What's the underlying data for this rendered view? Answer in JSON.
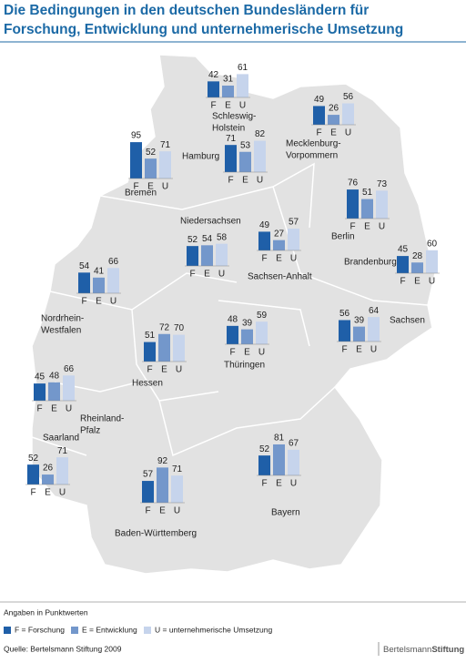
{
  "title_lines": [
    "Die Bedingungen in den deutschen Bundesländern für",
    "Forschung, Entwicklung und unternehmerische Umsetzung"
  ],
  "bar_labels": [
    "F",
    "E",
    "U"
  ],
  "colors": [
    "#1f5fa8",
    "#7397cb",
    "#c6d4ec"
  ],
  "states": [
    {
      "name_lines": [
        "Schleswig-",
        "Holstein"
      ],
      "values": [
        42,
        31,
        61
      ]
    },
    {
      "name_lines": [
        "Mecklenburg-",
        "Vorpommern"
      ],
      "values": [
        49,
        26,
        56
      ]
    },
    {
      "name_lines": [
        "Hamburg"
      ],
      "values": [
        71,
        53,
        82
      ]
    },
    {
      "name_lines": [
        "Bremen"
      ],
      "values": [
        95,
        52,
        71
      ]
    },
    {
      "name_lines": [
        "Berlin"
      ],
      "values": [
        76,
        51,
        73
      ]
    },
    {
      "name_lines": [
        "Brandenburg"
      ],
      "values": [
        45,
        28,
        60
      ]
    },
    {
      "name_lines": [
        "Niedersachsen"
      ],
      "values": [
        52,
        54,
        58
      ]
    },
    {
      "name_lines": [
        "Sachsen-Anhalt"
      ],
      "values": [
        49,
        27,
        57
      ]
    },
    {
      "name_lines": [
        "Nordrhein-",
        "Westfalen"
      ],
      "values": [
        54,
        41,
        66
      ]
    },
    {
      "name_lines": [
        "Sachsen"
      ],
      "values": [
        56,
        39,
        64
      ]
    },
    {
      "name_lines": [
        "Thüringen"
      ],
      "values": [
        48,
        39,
        59
      ]
    },
    {
      "name_lines": [
        "Hessen"
      ],
      "values": [
        51,
        72,
        70
      ]
    },
    {
      "name_lines": [
        "Rheinland-",
        "Pfalz"
      ],
      "values": [
        45,
        48,
        66
      ]
    },
    {
      "name_lines": [
        "Saarland"
      ],
      "values": [
        52,
        26,
        71
      ]
    },
    {
      "name_lines": [
        "Baden-Württemberg"
      ],
      "values": [
        57,
        92,
        71
      ]
    },
    {
      "name_lines": [
        "Bayern"
      ],
      "values": [
        52,
        81,
        67
      ]
    }
  ],
  "note": "Angaben in Punktwerten",
  "legend": [
    "F = Forschung",
    "E = Entwicklung",
    "U = unternehmerische Umsetzung"
  ],
  "source": "Quelle: Bertelsmann Stiftung 2009",
  "brand": [
    "Bertelsmann",
    "Stiftung"
  ]
}
